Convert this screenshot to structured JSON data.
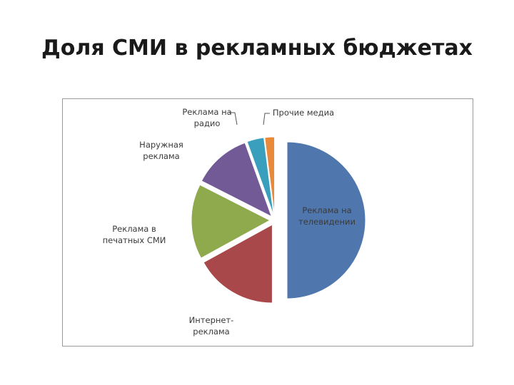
{
  "page": {
    "title": "Доля СМИ в рекламных бюджетах"
  },
  "chart_data": {
    "type": "pie",
    "title": "",
    "exploded": true,
    "legend": "none",
    "slices": [
      {
        "label_lines": [
          "Реклама на",
          "телевидении"
        ],
        "value": 50.0,
        "color": "#4f77ae"
      },
      {
        "label_lines": [
          "Интернет-",
          "реклама"
        ],
        "value": 17.0,
        "color": "#a9484a"
      },
      {
        "label_lines": [
          "Реклама в",
          "печатных СМИ"
        ],
        "value": 15.5,
        "color": "#8eaa4c"
      },
      {
        "label_lines": [
          "Наружная",
          "реклама"
        ],
        "value": 12.0,
        "color": "#725a97"
      },
      {
        "label_lines": [
          "Реклама на",
          "радио"
        ],
        "value": 3.5,
        "color": "#3a9fbd"
      },
      {
        "label_lines": [
          "Прочие медиа"
        ],
        "value": 2.0,
        "color": "#e88a3a"
      }
    ]
  }
}
